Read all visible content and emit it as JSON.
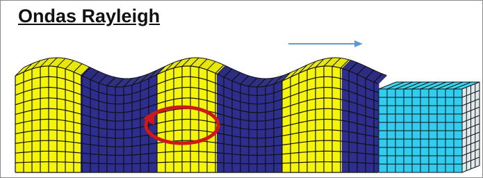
{
  "title": "Ondas Rayleigh"
}
